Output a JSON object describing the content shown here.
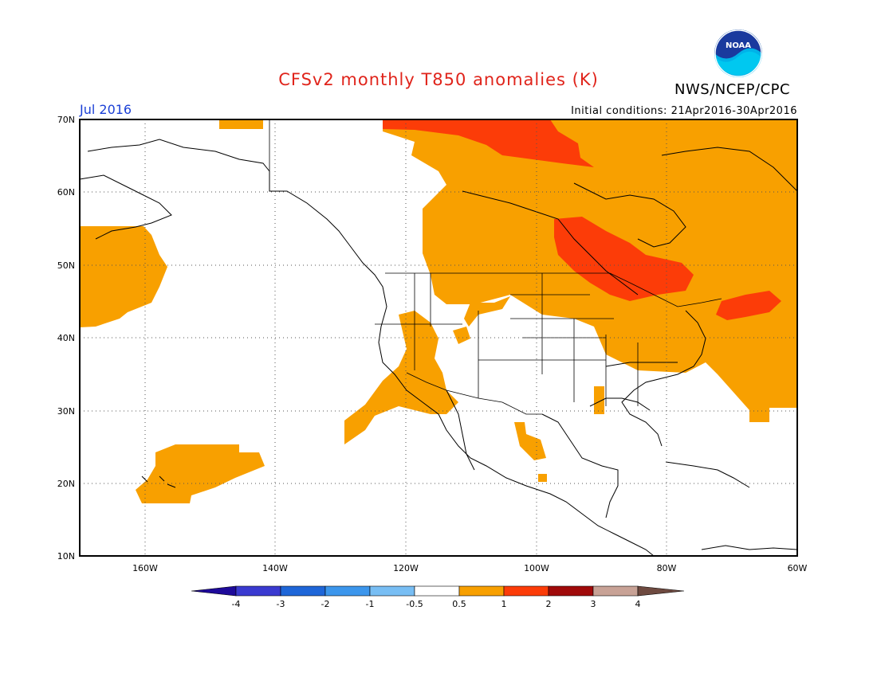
{
  "header": {
    "title": "CFSv2 monthly T850 anomalies (K)",
    "org": "NWS/NCEP/CPC",
    "logo_text": "NOAA",
    "valid_month": "Jul 2016",
    "initial_conditions": "Initial conditions: 21Apr2016-30Apr2016"
  },
  "map": {
    "lat_labels": [
      "70N",
      "60N",
      "50N",
      "40N",
      "30N",
      "20N",
      "10N"
    ],
    "lon_labels": [
      "160W",
      "140W",
      "120W",
      "100W",
      "80W",
      "60W"
    ],
    "colors": {
      "anom_0_5_1": "#f8a000",
      "anom_1_2": "#fc3c08",
      "coast": "#000000",
      "grid": "#555555"
    }
  },
  "colorbar": {
    "ticks": [
      "-4",
      "-3",
      "-2",
      "-1",
      "-0.5",
      "0.5",
      "1",
      "2",
      "3",
      "4"
    ],
    "colors": [
      "#1e0a9a",
      "#3a3ad0",
      "#1e66d8",
      "#3c96ec",
      "#78bef4",
      "#ffffff",
      "#f8a000",
      "#fc3c08",
      "#a00a0a",
      "#c8a296",
      "#6e4a40"
    ]
  }
}
